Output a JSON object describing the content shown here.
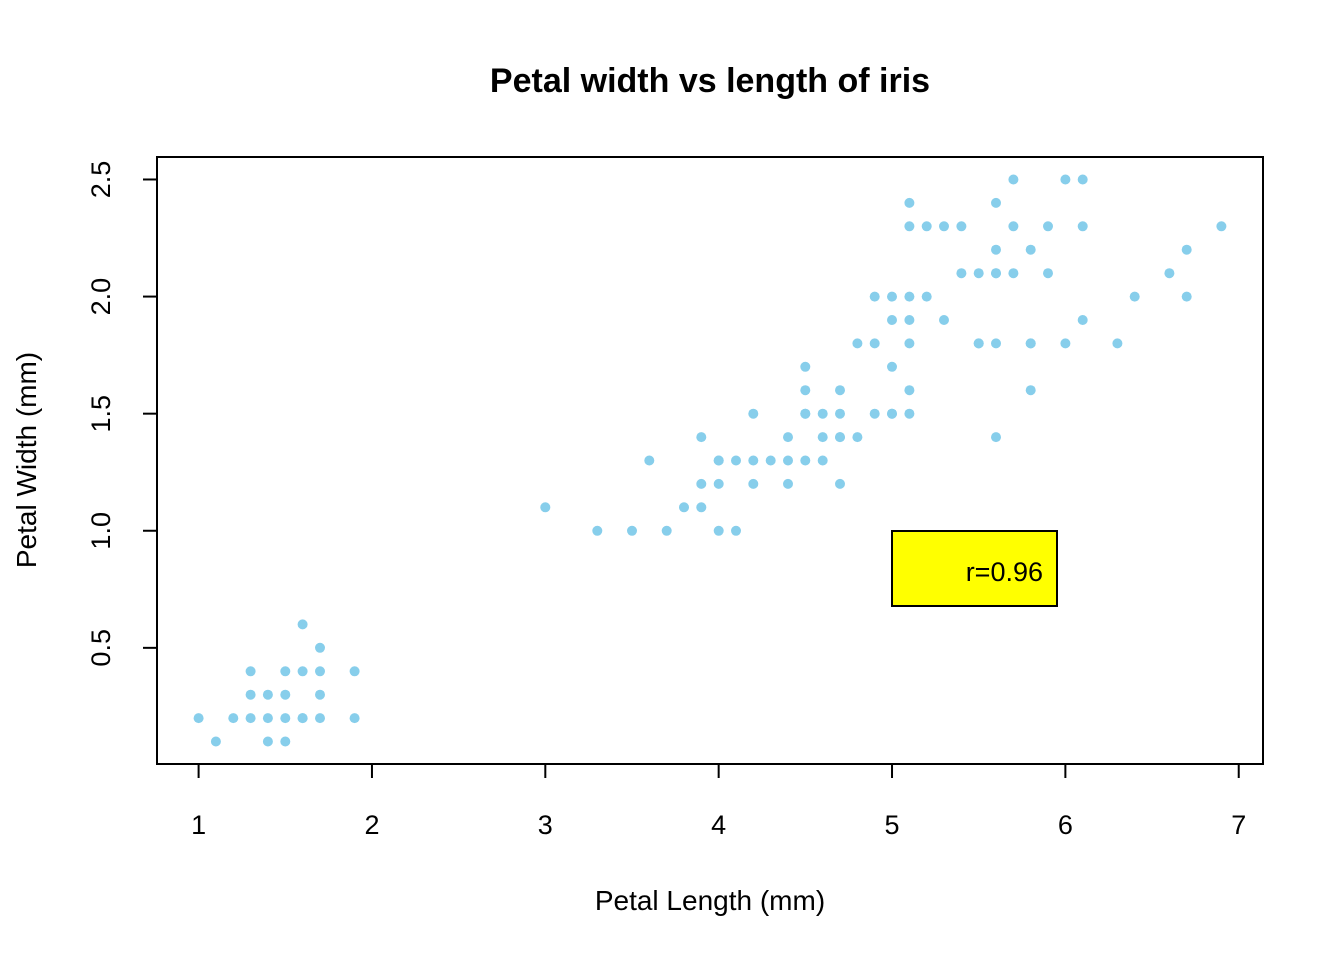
{
  "chart_data": {
    "type": "scatter",
    "title": "Petal width vs length of iris",
    "xlabel": "Petal Length (mm)",
    "ylabel": "Petal Width (mm)",
    "xlim": [
      0.76,
      7.14
    ],
    "ylim": [
      0.004,
      2.596
    ],
    "xticks": [
      1,
      2,
      3,
      4,
      5,
      6,
      7
    ],
    "xtick_labels": [
      "1",
      "2",
      "3",
      "4",
      "5",
      "6",
      "7"
    ],
    "yticks": [
      0.5,
      1.0,
      1.5,
      2.0,
      2.5
    ],
    "ytick_labels": [
      "0.5",
      "1.0",
      "1.5",
      "2.0",
      "2.5"
    ],
    "grid": false,
    "point_color": "#87CEEB",
    "annotation": {
      "text": "r=0.96",
      "x": 5.48,
      "y": 0.84,
      "fill": "#FFFF00"
    },
    "x": [
      1.0,
      1.1,
      1.2,
      1.3,
      1.3,
      1.3,
      1.4,
      1.4,
      1.4,
      1.5,
      1.5,
      1.5,
      1.5,
      1.6,
      1.6,
      1.6,
      1.6,
      1.7,
      1.7,
      1.7,
      1.7,
      1.9,
      1.9,
      3.0,
      3.3,
      3.5,
      3.6,
      3.7,
      3.8,
      3.9,
      3.9,
      3.9,
      4.0,
      4.0,
      4.0,
      4.0,
      4.1,
      4.1,
      4.2,
      4.2,
      4.2,
      4.3,
      4.4,
      4.4,
      4.4,
      4.5,
      4.5,
      4.5,
      4.5,
      4.5,
      4.6,
      4.6,
      4.6,
      4.7,
      4.7,
      4.7,
      4.7,
      4.7,
      4.8,
      4.8,
      4.9,
      4.9,
      4.9,
      5.0,
      5.0,
      5.0,
      5.0,
      5.0,
      5.1,
      5.1,
      5.1,
      5.1,
      5.1,
      5.1,
      5.1,
      5.2,
      5.2,
      5.3,
      5.3,
      5.4,
      5.4,
      5.5,
      5.5,
      5.5,
      5.6,
      5.6,
      5.6,
      5.6,
      5.6,
      5.6,
      5.7,
      5.7,
      5.7,
      5.8,
      5.8,
      5.8,
      5.8,
      5.9,
      5.9,
      6.0,
      6.0,
      6.1,
      6.1,
      6.1,
      6.3,
      6.4,
      6.6,
      6.7,
      6.7,
      6.9
    ],
    "y": [
      0.2,
      0.1,
      0.2,
      0.2,
      0.3,
      0.4,
      0.1,
      0.2,
      0.3,
      0.1,
      0.2,
      0.3,
      0.4,
      0.2,
      0.4,
      0.6,
      0.2,
      0.2,
      0.3,
      0.4,
      0.5,
      0.2,
      0.4,
      1.1,
      1.0,
      1.0,
      1.3,
      1.0,
      1.1,
      1.1,
      1.2,
      1.4,
      1.0,
      1.2,
      1.3,
      1.3,
      1.0,
      1.3,
      1.2,
      1.3,
      1.5,
      1.3,
      1.2,
      1.3,
      1.4,
      1.3,
      1.5,
      1.6,
      1.7,
      1.5,
      1.3,
      1.4,
      1.5,
      1.2,
      1.4,
      1.5,
      1.6,
      1.4,
      1.4,
      1.8,
      1.5,
      1.8,
      2.0,
      1.5,
      1.7,
      1.9,
      2.0,
      1.5,
      1.5,
      1.6,
      1.8,
      1.9,
      2.0,
      2.3,
      2.4,
      2.0,
      2.3,
      1.9,
      2.3,
      2.1,
      2.3,
      1.8,
      2.1,
      1.8,
      1.4,
      1.8,
      2.1,
      2.2,
      2.4,
      2.1,
      2.1,
      2.3,
      2.5,
      1.6,
      1.8,
      2.2,
      1.8,
      2.1,
      2.3,
      1.8,
      2.5,
      1.9,
      2.3,
      2.5,
      1.8,
      2.0,
      2.1,
      2.0,
      2.2,
      2.3
    ]
  }
}
